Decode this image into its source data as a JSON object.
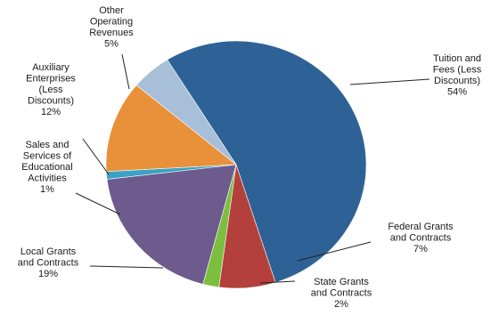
{
  "chart_data": {
    "type": "pie",
    "title": "",
    "slices": [
      {
        "label_lines": [
          "Tuition and",
          "Fees (Less",
          "Discounts)"
        ],
        "value": 54,
        "percent_label": "54%",
        "color": "#2e6296"
      },
      {
        "label_lines": [
          "Federal Grants",
          "and Contracts"
        ],
        "value": 7,
        "percent_label": "7%",
        "color": "#b3403c"
      },
      {
        "label_lines": [
          "State Grants",
          "and Contracts"
        ],
        "value": 2,
        "percent_label": "2%",
        "color": "#7cbe3e"
      },
      {
        "label_lines": [
          "Local Grants",
          "and Contracts"
        ],
        "value": 19,
        "percent_label": "19%",
        "color": "#6d5b8d"
      },
      {
        "label_lines": [
          "Sales and",
          "Services of",
          "Educational",
          "Activities"
        ],
        "value": 1,
        "percent_label": "1%",
        "color": "#3aa2c2"
      },
      {
        "label_lines": [
          "Auxiliary",
          "Enterprises",
          "(Less",
          "Discounts)"
        ],
        "value": 12,
        "percent_label": "12%",
        "color": "#e8913a"
      },
      {
        "label_lines": [
          "Other",
          "Operating",
          "Revenues"
        ],
        "value": 5,
        "percent_label": "5%",
        "color": "#a7bfd8"
      }
    ]
  }
}
